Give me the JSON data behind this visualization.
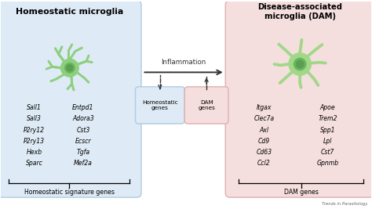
{
  "title_left": "Homeostatic microglia",
  "title_right": "Disease-associated\nmicroglia (DAM)",
  "inflammation_label": "Inflammation",
  "box_left_color": "#deeaf5",
  "box_right_color": "#f5dede",
  "box_homeostatic_genes_color": "#deeaf5",
  "box_dam_genes_color": "#f5dede",
  "homeostatic_genes_label": "Homeostatic\ngenes",
  "dam_genes_label": "DAM\ngenes",
  "left_genes_col1": [
    "Sall1",
    "Sall3",
    "P2ry12",
    "P2ry13",
    "Hexb",
    "Sparc"
  ],
  "left_genes_col2": [
    "Entpd1",
    "Adora3",
    "Cst3",
    "Ecscr",
    "Tgfa",
    "Mef2a"
  ],
  "left_genes_label": "Homeostatic signature genes",
  "right_genes_col1": [
    "Itgax",
    "Clec7a",
    "Axl",
    "Cd9",
    "Cd63",
    "Ccl2"
  ],
  "right_genes_col2": [
    "Apoe",
    "Trem2",
    "Spp1",
    "Lpl",
    "Cst7",
    "Gpnmb"
  ],
  "right_genes_label": "DAM genes",
  "microglia_body": "#8dcf7e",
  "microglia_body2": "#a0d888",
  "microglia_nucleus": "#5a9e50",
  "microglia_nucleus2": "#6ab55e",
  "border_left": "#b0cce0",
  "border_right": "#e0b0b0",
  "watermark": "Trends in Parasitology",
  "bg_color": "#ffffff"
}
